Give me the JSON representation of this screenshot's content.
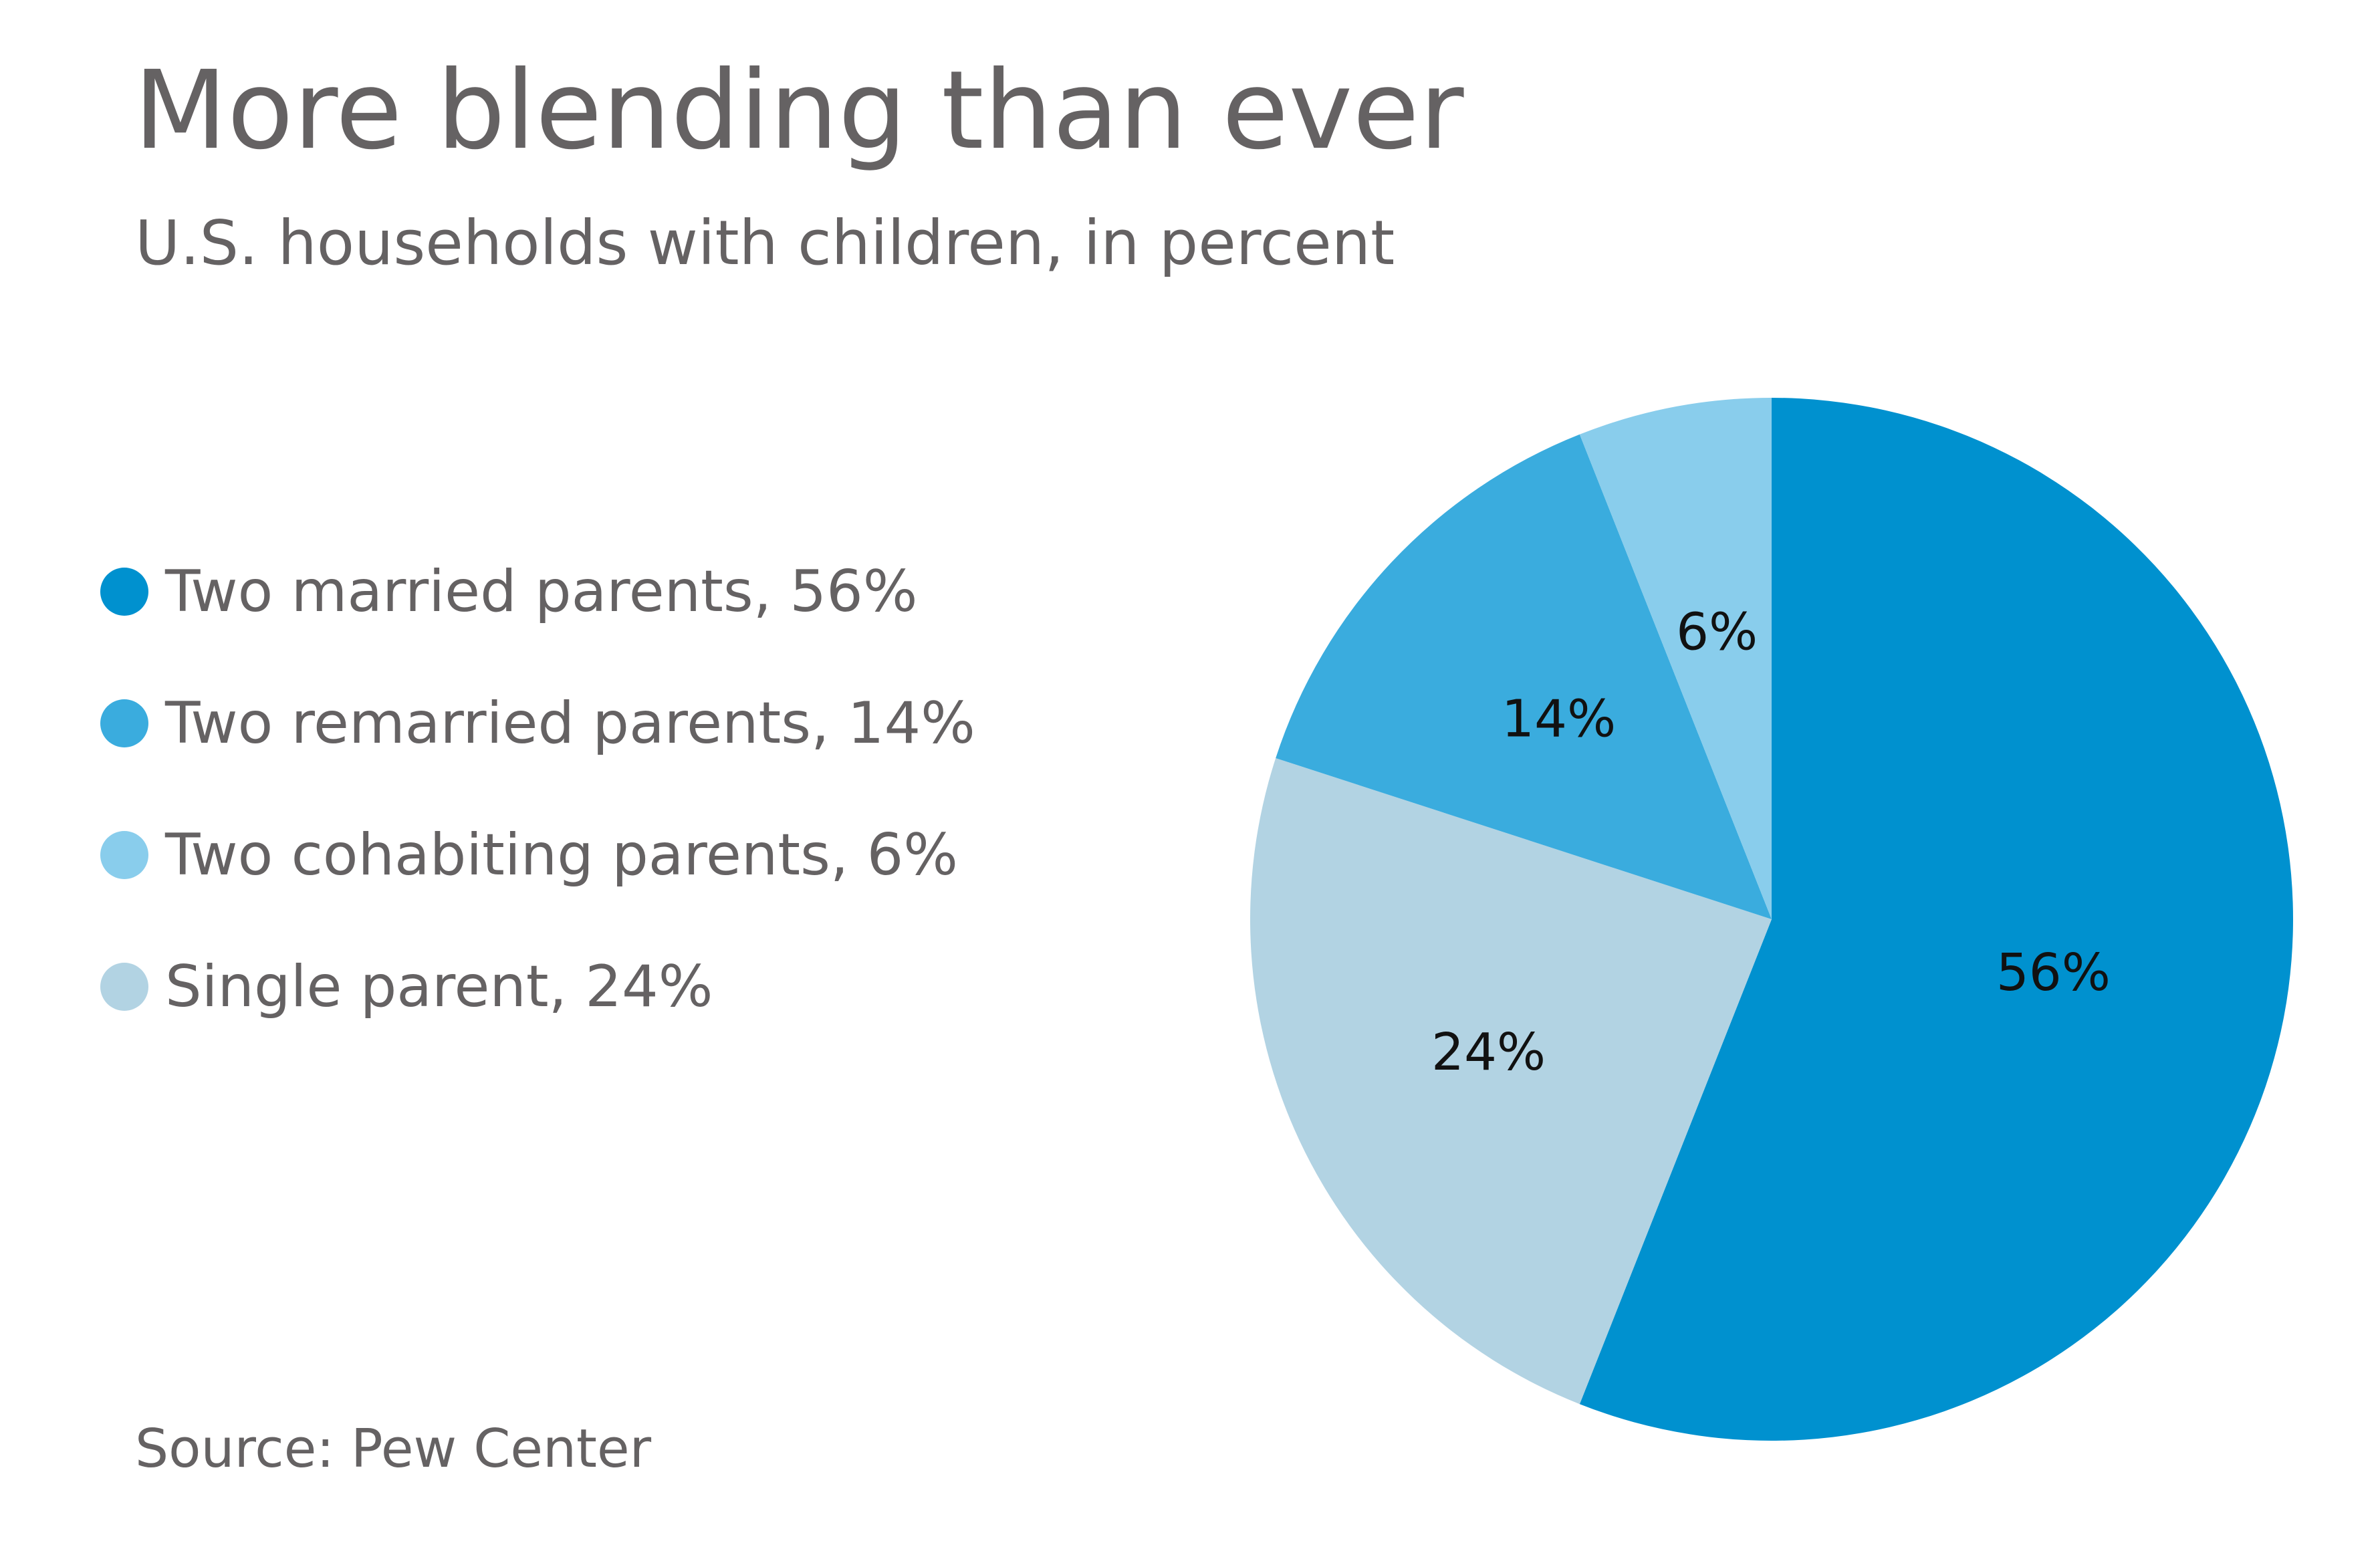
{
  "title": "More blending than ever",
  "subtitle": "U.S. households with children, in percent",
  "source": "Source: Pew Center",
  "legend": [
    {
      "label": "Two married parents, 56%",
      "color": "#0091CF"
    },
    {
      "label": "Two remarried parents, 14%",
      "color": "#3AACDE"
    },
    {
      "label": "Two cohabiting parents, 6%",
      "color": "#89CDEC"
    },
    {
      "label": "Single parent, 24%",
      "color": "#B2D3E3"
    }
  ],
  "chart_data": {
    "type": "pie",
    "title": "More blending than ever",
    "subtitle": "U.S. households with children, in percent",
    "categories": [
      "Two married parents",
      "Single parent",
      "Two remarried parents",
      "Two cohabiting parents"
    ],
    "values": [
      56,
      24,
      14,
      6
    ],
    "labels": [
      "56%",
      "24%",
      "14%",
      "6%"
    ],
    "colors": [
      "#0091CF",
      "#B2D3E3",
      "#3AACDE",
      "#89CDEC"
    ],
    "start": "12 o'clock",
    "direction": "clockwise",
    "legend_position": "left"
  }
}
